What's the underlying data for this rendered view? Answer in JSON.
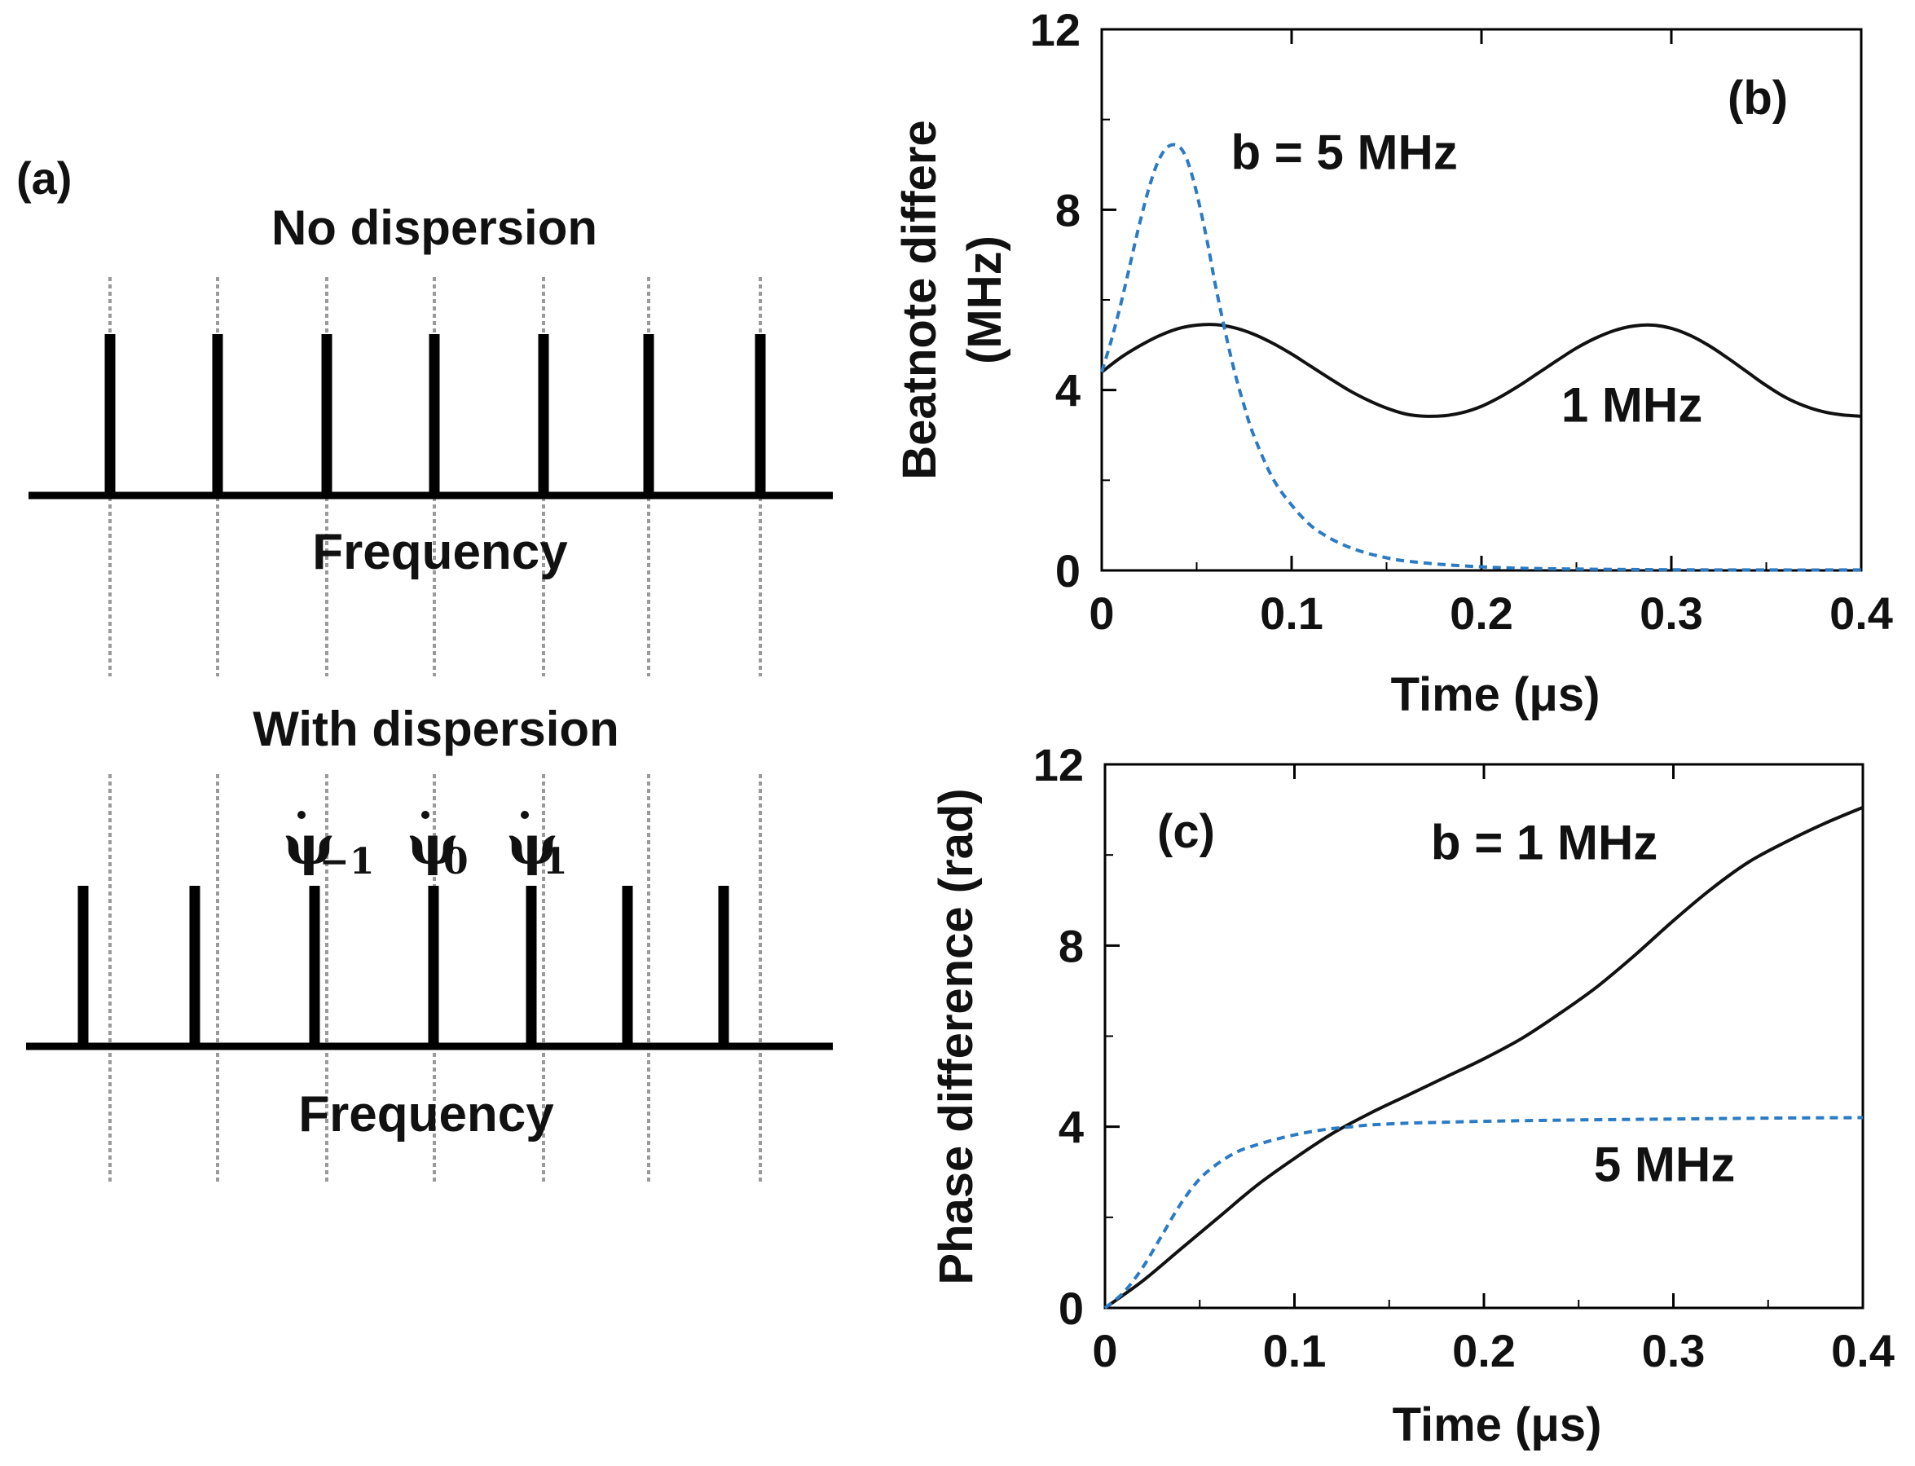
{
  "panel_a": {
    "label": "(a)",
    "top_title": "No dispersion",
    "bottom_title": "With dispersion",
    "axis_label_top": "Frequency",
    "axis_label_bottom": "Frequency",
    "mode_labels": [
      {
        "base": "ψ",
        "sub": "−1"
      },
      {
        "base": "ψ",
        "sub": "0"
      },
      {
        "base": "ψ",
        "sub": "1"
      }
    ],
    "mode_count": 7
  },
  "chart_data": [
    {
      "type": "line",
      "panel": "(b)",
      "title": "",
      "xlabel": "Time (μs)",
      "ylabel_lines": [
        "Beatnote differe",
        "(MHz)"
      ],
      "xlim": [
        0,
        0.4
      ],
      "ylim": [
        0,
        12
      ],
      "xticks": [
        0,
        0.1,
        0.2,
        0.3,
        0.4
      ],
      "xtick_labels": [
        "0",
        "0.1",
        "0.2",
        "0.3",
        "0.4"
      ],
      "yticks": [
        0,
        4,
        8,
        12
      ],
      "ytick_labels": [
        "0",
        "4",
        "8",
        "12"
      ],
      "annotations": [
        {
          "text": "b = 5 MHz",
          "x": 0.068,
          "y": 8.9
        },
        {
          "text": "1 MHz",
          "x": 0.242,
          "y": 3.3
        }
      ],
      "series": [
        {
          "name": "1 MHz",
          "color": "#111111",
          "dash": "solid",
          "x": [
            0,
            0.01,
            0.02,
            0.03,
            0.04,
            0.05,
            0.06,
            0.07,
            0.08,
            0.09,
            0.1,
            0.11,
            0.12,
            0.13,
            0.14,
            0.15,
            0.16,
            0.17,
            0.18,
            0.19,
            0.2,
            0.21,
            0.22,
            0.23,
            0.24,
            0.25,
            0.26,
            0.27,
            0.28,
            0.29,
            0.3,
            0.31,
            0.32,
            0.33,
            0.34,
            0.35,
            0.36,
            0.37,
            0.38,
            0.39,
            0.4
          ],
          "y": [
            4.4,
            4.72,
            4.98,
            5.2,
            5.36,
            5.44,
            5.45,
            5.38,
            5.24,
            5.04,
            4.8,
            4.53,
            4.26,
            4.0,
            3.78,
            3.6,
            3.47,
            3.42,
            3.43,
            3.5,
            3.64,
            3.85,
            4.1,
            4.38,
            4.66,
            4.93,
            5.15,
            5.32,
            5.42,
            5.44,
            5.37,
            5.21,
            4.98,
            4.7,
            4.4,
            4.1,
            3.84,
            3.65,
            3.52,
            3.45,
            3.42
          ]
        },
        {
          "name": "5 MHz",
          "color": "#2b7bc4",
          "dash": "dashed",
          "x": [
            0,
            0.005,
            0.01,
            0.015,
            0.02,
            0.025,
            0.03,
            0.035,
            0.04,
            0.044,
            0.048,
            0.052,
            0.056,
            0.06,
            0.065,
            0.07,
            0.075,
            0.08,
            0.09,
            0.1,
            0.11,
            0.12,
            0.13,
            0.14,
            0.15,
            0.16,
            0.18,
            0.2,
            0.22,
            0.25,
            0.28,
            0.3,
            0.35,
            0.4
          ],
          "y": [
            4.4,
            5.1,
            5.9,
            6.8,
            7.7,
            8.5,
            9.1,
            9.4,
            9.42,
            9.2,
            8.7,
            8.0,
            7.2,
            6.3,
            5.3,
            4.4,
            3.65,
            3.0,
            2.05,
            1.45,
            1.0,
            0.72,
            0.52,
            0.38,
            0.28,
            0.21,
            0.13,
            0.08,
            0.05,
            0.03,
            0.02,
            0.015,
            0.01,
            0.01
          ]
        }
      ]
    },
    {
      "type": "line",
      "panel": "(c)",
      "title": "",
      "xlabel": "Time (μs)",
      "ylabel_lines": [
        "Phase difference (rad)"
      ],
      "xlim": [
        0,
        0.4
      ],
      "ylim": [
        0,
        12
      ],
      "xticks": [
        0,
        0.1,
        0.2,
        0.3,
        0.4
      ],
      "xtick_labels": [
        "0",
        "0.1",
        "0.2",
        "0.3",
        "0.4"
      ],
      "yticks": [
        0,
        4,
        8,
        12
      ],
      "ytick_labels": [
        "0",
        "4",
        "8",
        "12"
      ],
      "annotations": [
        {
          "text": "b = 1 MHz",
          "x": 0.172,
          "y": 9.9
        },
        {
          "text": "5 MHz",
          "x": 0.258,
          "y": 2.8
        }
      ],
      "series": [
        {
          "name": "b = 1 MHz",
          "color": "#111111",
          "dash": "solid",
          "x": [
            0,
            0.02,
            0.04,
            0.06,
            0.08,
            0.1,
            0.12,
            0.14,
            0.16,
            0.18,
            0.2,
            0.22,
            0.24,
            0.26,
            0.28,
            0.3,
            0.32,
            0.34,
            0.36,
            0.38,
            0.4
          ],
          "y": [
            0,
            0.6,
            1.3,
            2.0,
            2.7,
            3.3,
            3.85,
            4.3,
            4.7,
            5.1,
            5.5,
            5.95,
            6.5,
            7.1,
            7.8,
            8.55,
            9.25,
            9.85,
            10.3,
            10.7,
            11.05
          ]
        },
        {
          "name": "5 MHz",
          "color": "#2b7bc4",
          "dash": "dashed",
          "x": [
            0,
            0.01,
            0.02,
            0.03,
            0.04,
            0.05,
            0.06,
            0.07,
            0.08,
            0.09,
            0.1,
            0.11,
            0.12,
            0.13,
            0.14,
            0.16,
            0.18,
            0.2,
            0.25,
            0.3,
            0.35,
            0.4
          ],
          "y": [
            0,
            0.35,
            0.9,
            1.6,
            2.3,
            2.85,
            3.2,
            3.45,
            3.6,
            3.72,
            3.82,
            3.9,
            3.96,
            4.0,
            4.04,
            4.08,
            4.1,
            4.12,
            4.15,
            4.17,
            4.19,
            4.2
          ]
        }
      ]
    }
  ]
}
